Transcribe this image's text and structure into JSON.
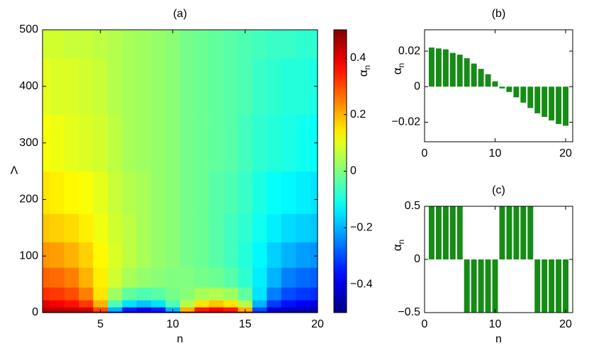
{
  "chart_data": [
    {
      "type": "contour",
      "title": "(a)",
      "xlabel": "n",
      "ylabel": "Λ",
      "colormap": "jet",
      "x": [
        1,
        2,
        3,
        4,
        5,
        6,
        7,
        8,
        9,
        10,
        11,
        12,
        13,
        14,
        15,
        16,
        17,
        18,
        19,
        20
      ],
      "y": [
        0,
        5,
        15,
        30,
        60,
        100,
        150,
        200,
        300,
        400,
        500
      ],
      "z": [
        [
          0.5,
          0.5,
          0.5,
          0.5,
          0.48,
          -0.45,
          -0.5,
          -0.5,
          -0.5,
          -0.48,
          0.48,
          0.5,
          0.5,
          0.5,
          0.45,
          -0.48,
          -0.5,
          -0.5,
          -0.5,
          -0.5
        ],
        [
          0.45,
          0.45,
          0.44,
          0.42,
          0.3,
          -0.2,
          -0.35,
          -0.38,
          -0.35,
          -0.2,
          0.2,
          0.35,
          0.38,
          0.35,
          0.2,
          -0.3,
          -0.42,
          -0.44,
          -0.45,
          -0.45
        ],
        [
          0.4,
          0.38,
          0.36,
          0.32,
          0.2,
          -0.05,
          -0.15,
          -0.18,
          -0.15,
          -0.05,
          0.05,
          0.15,
          0.18,
          0.15,
          0.05,
          -0.2,
          -0.32,
          -0.36,
          -0.38,
          -0.4
        ],
        [
          0.33,
          0.32,
          0.3,
          0.25,
          0.15,
          0.03,
          -0.03,
          -0.05,
          -0.04,
          -0.01,
          0.01,
          0.04,
          0.05,
          0.03,
          -0.03,
          -0.15,
          -0.25,
          -0.3,
          -0.32,
          -0.33
        ],
        [
          0.28,
          0.27,
          0.25,
          0.2,
          0.14,
          0.08,
          0.04,
          0.02,
          0.01,
          0.0,
          0.0,
          -0.01,
          -0.02,
          -0.04,
          -0.08,
          -0.14,
          -0.2,
          -0.25,
          -0.27,
          -0.28
        ],
        [
          0.23,
          0.22,
          0.2,
          0.17,
          0.13,
          0.09,
          0.06,
          0.04,
          0.02,
          0.01,
          -0.01,
          -0.02,
          -0.04,
          -0.06,
          -0.09,
          -0.13,
          -0.17,
          -0.2,
          -0.22,
          -0.23
        ],
        [
          0.18,
          0.17,
          0.16,
          0.14,
          0.11,
          0.08,
          0.06,
          0.04,
          0.02,
          0.01,
          -0.01,
          -0.02,
          -0.04,
          -0.06,
          -0.08,
          -0.11,
          -0.14,
          -0.16,
          -0.17,
          -0.18
        ],
        [
          0.15,
          0.14,
          0.13,
          0.12,
          0.1,
          0.07,
          0.05,
          0.04,
          0.02,
          0.01,
          -0.01,
          -0.02,
          -0.04,
          -0.05,
          -0.07,
          -0.1,
          -0.12,
          -0.13,
          -0.14,
          -0.15
        ],
        [
          0.12,
          0.11,
          0.1,
          0.09,
          0.08,
          0.06,
          0.04,
          0.03,
          0.02,
          0.01,
          -0.01,
          -0.02,
          -0.03,
          -0.04,
          -0.06,
          -0.08,
          -0.09,
          -0.1,
          -0.11,
          -0.12
        ],
        [
          0.1,
          0.09,
          0.09,
          0.08,
          0.07,
          0.05,
          0.04,
          0.03,
          0.02,
          0.01,
          -0.01,
          -0.02,
          -0.03,
          -0.04,
          -0.05,
          -0.07,
          -0.08,
          -0.09,
          -0.09,
          -0.1
        ],
        [
          0.08,
          0.08,
          0.07,
          0.07,
          0.06,
          0.05,
          0.04,
          0.03,
          0.02,
          0.01,
          -0.01,
          -0.02,
          -0.03,
          -0.04,
          -0.05,
          -0.06,
          -0.07,
          -0.07,
          -0.08,
          -0.08
        ]
      ],
      "xlim": [
        1,
        20
      ],
      "xticks": [
        5,
        10,
        15,
        20
      ],
      "ylim": [
        0,
        500
      ],
      "yticks": [
        0,
        100,
        200,
        300,
        400,
        500
      ],
      "clim": [
        -0.5,
        0.5
      ],
      "cticks": [
        {
          "value": -0.4,
          "label": "−0.4"
        },
        {
          "value": -0.2,
          "label": "−0.2"
        },
        0,
        0.2,
        0.4
      ],
      "colorbar_label": {
        "symbol": "α",
        "subscript": "n"
      }
    },
    {
      "type": "bar",
      "title": "(b)",
      "color": "#168c16",
      "ylabel": {
        "symbol": "α",
        "subscript": "n"
      },
      "x": [
        1,
        2,
        3,
        4,
        5,
        6,
        7,
        8,
        9,
        10,
        11,
        12,
        13,
        14,
        15,
        16,
        17,
        18,
        19,
        20
      ],
      "values": [
        0.022,
        0.0215,
        0.021,
        0.019,
        0.018,
        0.016,
        0.013,
        0.01,
        0.007,
        0.003,
        -0.001,
        -0.003,
        -0.006,
        -0.009,
        -0.012,
        -0.015,
        -0.017,
        -0.019,
        -0.021,
        -0.022
      ],
      "xlim": [
        0,
        21
      ],
      "xticks": [
        0,
        10,
        20
      ],
      "ylim": [
        -0.031,
        0.032
      ],
      "yticks": [
        {
          "value": -0.02,
          "label": "−0.02"
        },
        0,
        0.02
      ]
    },
    {
      "type": "bar",
      "title": "(c)",
      "color": "#168c16",
      "xlabel": "n",
      "ylabel": {
        "symbol": "α",
        "subscript": "n"
      },
      "x": [
        1,
        2,
        3,
        4,
        5,
        6,
        7,
        8,
        9,
        10,
        11,
        12,
        13,
        14,
        15,
        16,
        17,
        18,
        19,
        20
      ],
      "values": [
        0.5,
        0.5,
        0.5,
        0.5,
        0.5,
        -0.5,
        -0.5,
        -0.5,
        -0.5,
        -0.5,
        0.5,
        0.5,
        0.5,
        0.5,
        0.5,
        -0.5,
        -0.5,
        -0.5,
        -0.5,
        -0.5
      ],
      "xlim": [
        0,
        21
      ],
      "xticks": [
        0,
        10,
        20
      ],
      "ylim": [
        -0.5,
        0.5
      ],
      "yticks": [
        {
          "value": -0.5,
          "label": "−0.5"
        },
        0,
        0.5
      ]
    }
  ]
}
